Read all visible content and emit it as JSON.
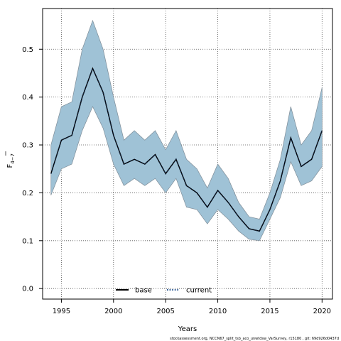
{
  "chart_data": {
    "type": "line",
    "xlabel": "Years",
    "ylabel": "F",
    "ylabel_sub": "4−7",
    "xlim": [
      1993.2,
      2021.0
    ],
    "ylim": [
      -0.022,
      0.585
    ],
    "xticks": [
      1995,
      2000,
      2005,
      2010,
      2015,
      2020
    ],
    "yticks": [
      0.0,
      0.1,
      0.2,
      0.3,
      0.4,
      0.5
    ],
    "ytick_labels": [
      "0.0",
      "0.1",
      "0.2",
      "0.3",
      "0.4",
      "0.5"
    ],
    "grid": true,
    "legend_position": "bottom",
    "colors": {
      "band": "#9fc2d6",
      "band_edge": "#7f8d98",
      "base": "#000000",
      "current": "#1f4e8c"
    },
    "x": [
      1994,
      1995,
      1996,
      1997,
      1998,
      1999,
      2000,
      2001,
      2002,
      2003,
      2004,
      2005,
      2006,
      2007,
      2008,
      2009,
      2010,
      2011,
      2012,
      2013,
      2014,
      2015,
      2016,
      2017,
      2018,
      2019,
      2020
    ],
    "band": {
      "upper": [
        0.3,
        0.38,
        0.39,
        0.5,
        0.56,
        0.5,
        0.4,
        0.31,
        0.33,
        0.31,
        0.33,
        0.29,
        0.33,
        0.27,
        0.25,
        0.21,
        0.26,
        0.23,
        0.18,
        0.15,
        0.145,
        0.2,
        0.27,
        0.38,
        0.3,
        0.33,
        0.42
      ],
      "lower": [
        0.195,
        0.25,
        0.26,
        0.33,
        0.38,
        0.335,
        0.26,
        0.215,
        0.23,
        0.215,
        0.23,
        0.2,
        0.23,
        0.17,
        0.165,
        0.135,
        0.165,
        0.145,
        0.12,
        0.103,
        0.1,
        0.145,
        0.19,
        0.265,
        0.215,
        0.225,
        0.255
      ]
    },
    "series": [
      {
        "name": "base",
        "style": "solid",
        "values": [
          0.24,
          0.31,
          0.32,
          0.4,
          0.46,
          0.41,
          0.32,
          0.26,
          0.27,
          0.26,
          0.28,
          0.24,
          0.27,
          0.215,
          0.2,
          0.17,
          0.205,
          0.18,
          0.15,
          0.125,
          0.12,
          0.165,
          0.225,
          0.315,
          0.255,
          0.27,
          0.33
        ]
      },
      {
        "name": "current",
        "style": "dotted",
        "values": [
          0.24,
          0.31,
          0.32,
          0.4,
          0.46,
          0.41,
          0.32,
          0.26,
          0.27,
          0.26,
          0.28,
          0.24,
          0.27,
          0.215,
          0.2,
          0.17,
          0.205,
          0.18,
          0.15,
          0.125,
          0.12,
          0.165,
          0.225,
          0.315,
          0.255,
          0.27,
          0.33
        ]
      }
    ]
  },
  "footer": "stockassessment.org, NCCN67_split_tsb_aco_unwtdsw_VarSurvey, r15180 , git: 69d926d0437d"
}
